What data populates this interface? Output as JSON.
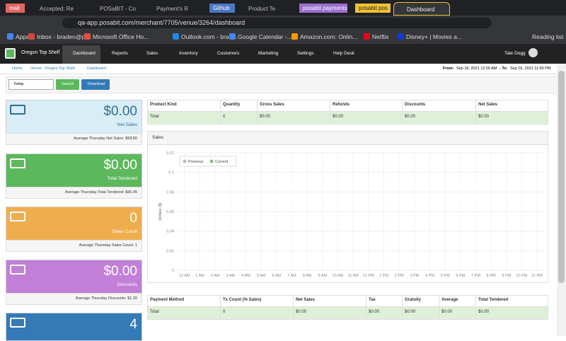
{
  "browser": {
    "tabs": [
      "mail",
      "Accepted: Re",
      "POSaBIT - Co",
      "Payment's R",
      "Github",
      "Product Te",
      "posabit payments",
      "posabit pos",
      "Dashboard"
    ],
    "url": "qa-app.posabit.com/merchant/7705/venue/3264/dashboard",
    "bookmarks": [
      "Apps",
      "Inbox - braden@pl...",
      "Microsoft Office Ho...",
      "Outlook.com - brad...",
      "Google Calendar -...",
      "Amazon.com: Onlin...",
      "Netflix",
      "Disney+ | Movies a..."
    ],
    "reading_list": "Reading list"
  },
  "nav": {
    "brand": "Oregon Top Shelf",
    "items": [
      "Dashboard",
      "Reports",
      "Sales",
      "Inventory",
      "Customers",
      "Marketing",
      "Settings",
      "Help Desk"
    ],
    "user": "Tate Dogg"
  },
  "breadcrumb": {
    "items": [
      "Home",
      "Venue : Oregon Top Shelf",
      "Dashboard"
    ],
    "from_label": "From:",
    "from": "Sep 16, 2021 12:00 AM",
    "to_label": "- To:",
    "to": "Sep 16, 2021 11:59 PM"
  },
  "filters": {
    "period": "Today",
    "search": "Search",
    "download": "Download"
  },
  "cards": [
    {
      "value": "$0.00",
      "label": "Net Sales",
      "footer": "Average Thursday Net Sales: $58.80"
    },
    {
      "value": "$0.00",
      "label": "Total Tendered",
      "footer": "Average Thursday Total Tendered: $66.45"
    },
    {
      "value": "0",
      "label": "Sales Count",
      "footer": "Average Thursday Sales Count: 1"
    },
    {
      "value": "$0.00",
      "label": "Discounts",
      "footer": "Average Thursday Discounts: $1.20"
    },
    {
      "value": "4"
    }
  ],
  "product_table": {
    "headers": [
      "Product Kind",
      "Quantity",
      "Gross Sales",
      "Refunds",
      "Discounts",
      "Net Sales"
    ],
    "rows": [
      [
        "Total",
        "0",
        "$0.00",
        "$0.00",
        "$0.00",
        "$0.00"
      ]
    ]
  },
  "sales_chart": {
    "title": "Sales",
    "legend": [
      "Previous",
      "Current"
    ],
    "legend_colors": [
      "#bbbbbb",
      "#7cc576"
    ],
    "y_label": "Dollars ($)",
    "ylim": [
      0,
      0.12
    ],
    "yticks": [
      0.12,
      0.1,
      0.08,
      0.06,
      0.04,
      0.02,
      0
    ],
    "categories": [
      "12 AM",
      "1 AM",
      "2 AM",
      "3 AM",
      "4 AM",
      "5 AM",
      "6 AM",
      "7 AM",
      "8 AM",
      "9 AM",
      "10 AM",
      "11 AM",
      "12 PM",
      "1 PM",
      "2 PM",
      "3 PM",
      "4 PM",
      "5 PM",
      "6 PM",
      "7 PM",
      "8 PM",
      "9 PM",
      "10 PM",
      "11 PM"
    ]
  },
  "payment_table": {
    "headers": [
      "Payment Method",
      "Tx Count (% Sales)",
      "Net Sales",
      "Tax",
      "Gratuity",
      "Average",
      "Total Tendered"
    ],
    "rows": [
      [
        "Total",
        "0",
        "$0.00",
        "$0.00",
        "$0.00",
        "$0.00",
        "$0.00"
      ]
    ]
  }
}
